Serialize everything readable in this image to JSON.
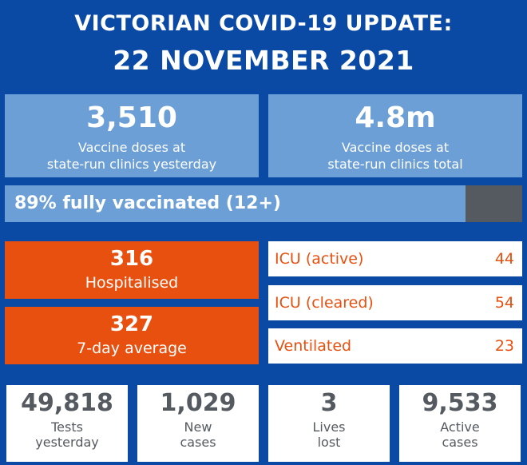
{
  "header": {
    "line1": "VICTORIAN COVID-19 UPDATE:",
    "line2": "22 NOVEMBER 2021"
  },
  "vaccine": {
    "yesterday_value": "3,510",
    "yesterday_label_1": "Vaccine doses at",
    "yesterday_label_2": "state-run clinics yesterday",
    "total_value": "4.8m",
    "total_label_1": "Vaccine doses at",
    "total_label_2": "state-run clinics total"
  },
  "fully_vaccinated": {
    "label": "89% fully vaccinated (12+)",
    "fraction": 0.89
  },
  "hospital": {
    "hospitalised_value": "316",
    "hospitalised_label": "Hospitalised",
    "avg_value": "327",
    "avg_label": "7-day average"
  },
  "icu": [
    {
      "label": "ICU (active)",
      "value": "44"
    },
    {
      "label": "ICU (cleared)",
      "value": "54"
    },
    {
      "label": "Ventilated",
      "value": "23"
    }
  ],
  "stats": [
    {
      "value": "49,818",
      "label_1": "Tests",
      "label_2": "yesterday"
    },
    {
      "value": "1,029",
      "label_1": "New",
      "label_2": "cases"
    },
    {
      "value": "3",
      "label_1": "Lives",
      "label_2": "lost"
    },
    {
      "value": "9,533",
      "label_1": "Active",
      "label_2": "cases"
    }
  ],
  "colors": {
    "background": "#0a4aa5",
    "vaccine_blue": "#6b9fd6",
    "orange": "#e8500f",
    "grey": "#555a60"
  }
}
